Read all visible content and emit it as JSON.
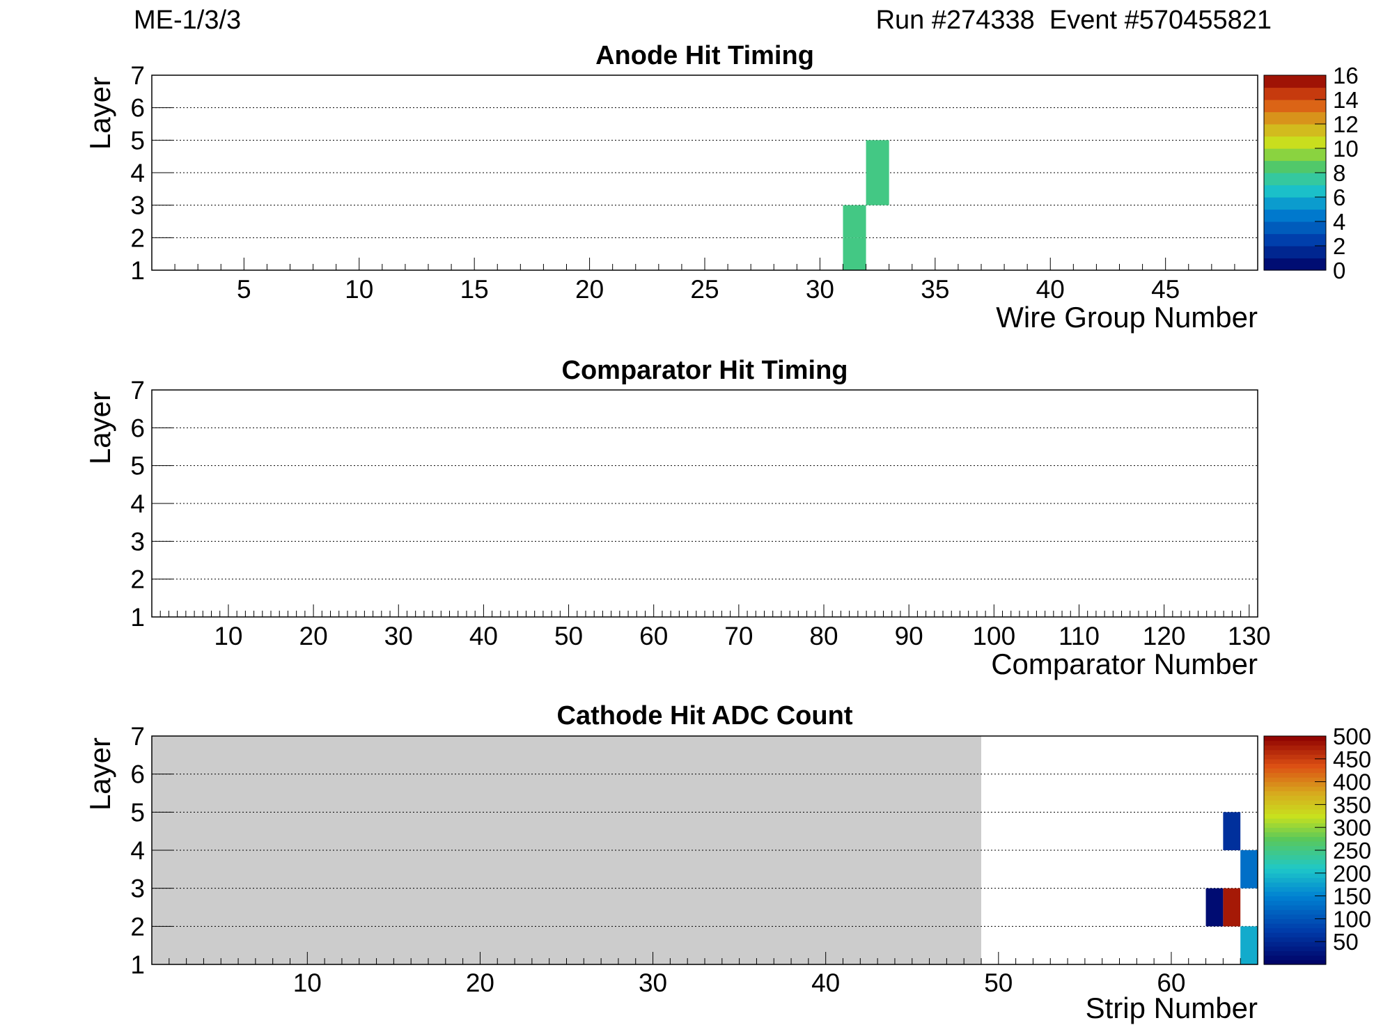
{
  "header": {
    "chamber": "ME-1/3/3",
    "run_event": "Run #274338  Event #570455821"
  },
  "colors": {
    "empty_bin_fill": "#cccccc",
    "frame": "#000000"
  },
  "chart_data": [
    {
      "type": "heatmap",
      "title": "Anode Hit Timing",
      "xlabel": "Wire Group Number",
      "ylabel": "Layer",
      "xlim": [
        1,
        49
      ],
      "ylim": [
        1,
        7
      ],
      "x_ticks": [
        5,
        10,
        15,
        20,
        25,
        30,
        35,
        40,
        45
      ],
      "y_ticks": [
        1,
        2,
        3,
        4,
        5,
        6,
        7
      ],
      "bin_width": 1,
      "grid": "horizontal dotted",
      "cells": [
        {
          "x": 31,
          "layer": 1,
          "value": 8
        },
        {
          "x": 31,
          "layer": 2,
          "value": 8
        },
        {
          "x": 32,
          "layer": 3,
          "value": 8
        },
        {
          "x": 32,
          "layer": 4,
          "value": 8
        }
      ],
      "palette": {
        "min": 0,
        "max": 16,
        "ticks": [
          0,
          2,
          4,
          6,
          8,
          10,
          12,
          14,
          16
        ],
        "levels": 16
      }
    },
    {
      "type": "heatmap",
      "title": "Comparator Hit Timing",
      "xlabel": "Comparator Number",
      "ylabel": "Layer",
      "xlim": [
        1,
        131
      ],
      "ylim": [
        1,
        7
      ],
      "x_ticks": [
        10,
        20,
        30,
        40,
        50,
        60,
        70,
        80,
        90,
        100,
        110,
        120,
        130
      ],
      "y_ticks": [
        1,
        2,
        3,
        4,
        5,
        6,
        7
      ],
      "bin_width": 1,
      "grid": "horizontal dotted",
      "cells": []
    },
    {
      "type": "heatmap",
      "title": "Cathode Hit ADC Count",
      "xlabel": "Strip Number",
      "ylabel": "Layer",
      "xlim": [
        1,
        65
      ],
      "ylim": [
        1,
        7
      ],
      "x_ticks": [
        10,
        20,
        30,
        40,
        50,
        60
      ],
      "y_ticks": [
        1,
        2,
        3,
        4,
        5,
        6,
        7
      ],
      "bin_width": 1,
      "grid": "horizontal dotted",
      "greyed_region": {
        "x_from": 1,
        "x_to": 49
      },
      "cells": [
        {
          "x": 64,
          "layer": 1,
          "value": 185
        },
        {
          "x": 64,
          "layer": 3,
          "value": 130
        },
        {
          "x": 63,
          "layer": 4,
          "value": 60
        },
        {
          "x": 62,
          "layer": 2,
          "value": 15
        },
        {
          "x": 63,
          "layer": 2,
          "value": 480
        }
      ],
      "palette": {
        "min": 0,
        "max": 500,
        "ticks": [
          50,
          100,
          150,
          200,
          250,
          300,
          350,
          400,
          450,
          500
        ],
        "levels": 50
      }
    }
  ]
}
